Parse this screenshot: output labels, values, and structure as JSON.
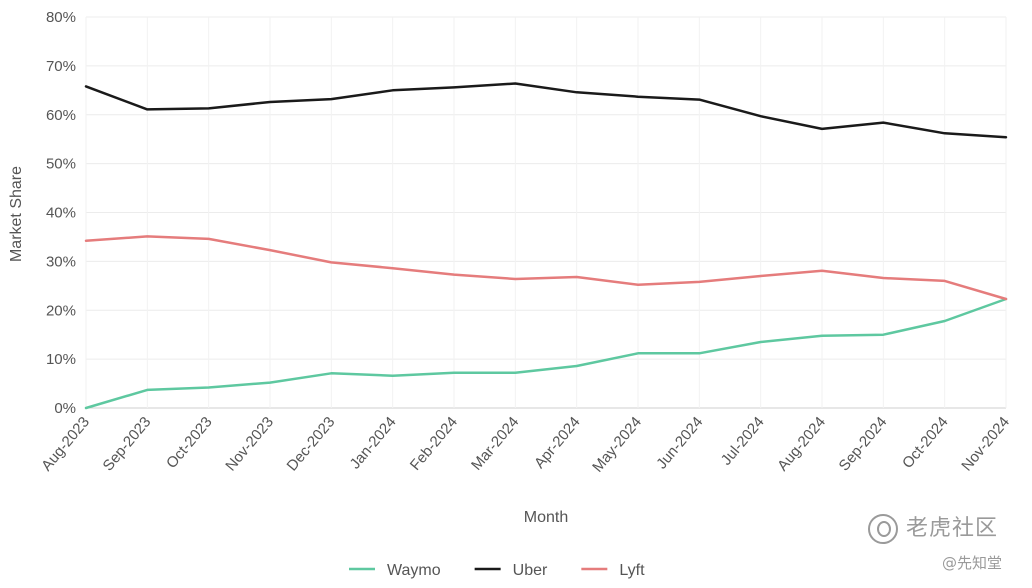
{
  "chart_data": {
    "type": "line",
    "categories": [
      "Aug-2023",
      "Sep-2023",
      "Oct-2023",
      "Nov-2023",
      "Dec-2023",
      "Jan-2024",
      "Feb-2024",
      "Mar-2024",
      "Apr-2024",
      "May-2024",
      "Jun-2024",
      "Jul-2024",
      "Aug-2024",
      "Sep-2024",
      "Oct-2024",
      "Nov-2024"
    ],
    "series": [
      {
        "name": "Waymo",
        "color": "#5ec8a0",
        "values": [
          0,
          3.7,
          4.2,
          5.2,
          7.1,
          6.6,
          7.2,
          7.2,
          8.6,
          11.2,
          11.2,
          13.5,
          14.8,
          15.0,
          17.8,
          22.3
        ]
      },
      {
        "name": "Uber",
        "color": "#1a1a1a",
        "values": [
          65.8,
          61.1,
          61.3,
          62.6,
          63.2,
          65.0,
          65.6,
          66.4,
          64.6,
          63.7,
          63.1,
          59.7,
          57.1,
          58.4,
          56.2,
          55.4
        ]
      },
      {
        "name": "Lyft",
        "color": "#e57c7c",
        "values": [
          34.2,
          35.1,
          34.6,
          32.3,
          29.8,
          28.6,
          27.3,
          26.4,
          26.8,
          25.2,
          25.8,
          27.0,
          28.1,
          26.6,
          26.0,
          22.3
        ]
      }
    ],
    "xlabel": "Month",
    "ylabel": "Market Share",
    "ylim": [
      0,
      80
    ],
    "yticks": [
      "0%",
      "10%",
      "20%",
      "30%",
      "40%",
      "50%",
      "60%",
      "70%",
      "80%"
    ],
    "grid": true,
    "legend_position": "bottom-center"
  },
  "watermark": {
    "main": "老虎社区",
    "sub": "@先知堂"
  }
}
